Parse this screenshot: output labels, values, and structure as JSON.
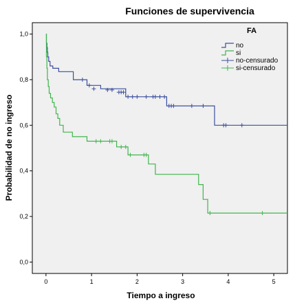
{
  "chart_data": {
    "type": "line",
    "step": true,
    "title": "Funciones de supervivencia",
    "xlabel": "Tiempo a ingreso",
    "ylabel": "Probabilidad de no ingreso",
    "xlim": [
      -0.3,
      5.3
    ],
    "ylim": [
      -0.05,
      1.05
    ],
    "x_ticks": [
      "0",
      "1",
      "2",
      "3",
      "4",
      "5"
    ],
    "x_tick_values": [
      0,
      1,
      2,
      3,
      4,
      5
    ],
    "y_ticks": [
      "0,0",
      "0,2",
      "0,4",
      "0,6",
      "0,8",
      "1,0"
    ],
    "y_tick_values": [
      0,
      0.2,
      0.4,
      0.6,
      0.8,
      1.0
    ],
    "grid": false,
    "legend": {
      "title": "FA",
      "position": "top-right",
      "entries": [
        {
          "label": "no",
          "marker": "step",
          "color": "#3a4f9e"
        },
        {
          "label": "si",
          "marker": "step",
          "color": "#3fb44c"
        },
        {
          "label": "no-censurado",
          "marker": "plus",
          "color": "#3a4f9e"
        },
        {
          "label": "si-censurado",
          "marker": "plus",
          "color": "#3fb44c"
        }
      ]
    },
    "series": [
      {
        "name": "no",
        "color": "#3a4f9e",
        "x": [
          0,
          0.01,
          0.02,
          0.03,
          0.04,
          0.06,
          0.09,
          0.15,
          0.28,
          0.6,
          0.9,
          1.2,
          1.75,
          2.65,
          3.7,
          5.3
        ],
        "y": [
          1.0,
          0.96,
          0.94,
          0.92,
          0.9,
          0.88,
          0.86,
          0.85,
          0.835,
          0.8,
          0.775,
          0.76,
          0.725,
          0.685,
          0.6,
          0.6
        ],
        "censored": [
          {
            "x": 0.8,
            "y": 0.8
          },
          {
            "x": 0.95,
            "y": 0.775
          },
          {
            "x": 1.05,
            "y": 0.76
          },
          {
            "x": 1.35,
            "y": 0.755
          },
          {
            "x": 1.45,
            "y": 0.755
          },
          {
            "x": 1.6,
            "y": 0.745
          },
          {
            "x": 1.65,
            "y": 0.745
          },
          {
            "x": 1.7,
            "y": 0.745
          },
          {
            "x": 1.8,
            "y": 0.725
          },
          {
            "x": 1.9,
            "y": 0.725
          },
          {
            "x": 2.0,
            "y": 0.725
          },
          {
            "x": 2.2,
            "y": 0.725
          },
          {
            "x": 2.35,
            "y": 0.725
          },
          {
            "x": 2.4,
            "y": 0.725
          },
          {
            "x": 2.5,
            "y": 0.725
          },
          {
            "x": 2.6,
            "y": 0.725
          },
          {
            "x": 2.7,
            "y": 0.685
          },
          {
            "x": 2.75,
            "y": 0.685
          },
          {
            "x": 2.8,
            "y": 0.685
          },
          {
            "x": 3.2,
            "y": 0.685
          },
          {
            "x": 3.45,
            "y": 0.685
          },
          {
            "x": 3.9,
            "y": 0.6
          },
          {
            "x": 3.95,
            "y": 0.6
          },
          {
            "x": 4.3,
            "y": 0.6
          }
        ]
      },
      {
        "name": "si",
        "color": "#3fb44c",
        "x": [
          0,
          0.01,
          0.02,
          0.03,
          0.05,
          0.07,
          0.1,
          0.14,
          0.18,
          0.22,
          0.26,
          0.3,
          0.38,
          0.58,
          0.9,
          1.55,
          1.8,
          2.25,
          2.4,
          3.35,
          3.45,
          3.55,
          5.3
        ],
        "y": [
          1.0,
          0.9,
          0.85,
          0.8,
          0.77,
          0.74,
          0.72,
          0.7,
          0.68,
          0.65,
          0.63,
          0.6,
          0.57,
          0.55,
          0.53,
          0.505,
          0.47,
          0.43,
          0.385,
          0.34,
          0.275,
          0.215,
          0.215
        ],
        "censored": [
          {
            "x": 1.1,
            "y": 0.53
          },
          {
            "x": 1.2,
            "y": 0.53
          },
          {
            "x": 1.4,
            "y": 0.53
          },
          {
            "x": 1.45,
            "y": 0.53
          },
          {
            "x": 1.65,
            "y": 0.505
          },
          {
            "x": 1.75,
            "y": 0.505
          },
          {
            "x": 1.85,
            "y": 0.47
          },
          {
            "x": 2.15,
            "y": 0.47
          },
          {
            "x": 2.2,
            "y": 0.47
          },
          {
            "x": 3.6,
            "y": 0.215
          },
          {
            "x": 4.75,
            "y": 0.215
          }
        ]
      }
    ]
  }
}
